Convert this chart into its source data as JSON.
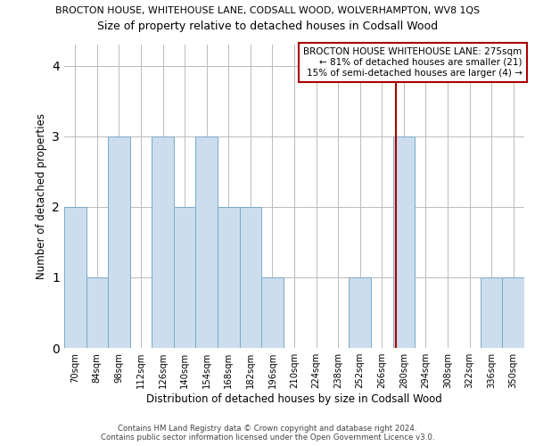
{
  "title_top": "BROCTON HOUSE, WHITEHOUSE LANE, CODSALL WOOD, WOLVERHAMPTON, WV8 1QS",
  "title_sub": "Size of property relative to detached houses in Codsall Wood",
  "xlabel": "Distribution of detached houses by size in Codsall Wood",
  "ylabel": "Number of detached properties",
  "categories": [
    "70sqm",
    "84sqm",
    "98sqm",
    "112sqm",
    "126sqm",
    "140sqm",
    "154sqm",
    "168sqm",
    "182sqm",
    "196sqm",
    "210sqm",
    "224sqm",
    "238sqm",
    "252sqm",
    "266sqm",
    "280sqm",
    "294sqm",
    "308sqm",
    "322sqm",
    "336sqm",
    "350sqm"
  ],
  "values": [
    2,
    1,
    3,
    0,
    3,
    2,
    3,
    2,
    2,
    1,
    0,
    0,
    0,
    1,
    0,
    3,
    0,
    0,
    0,
    1,
    1
  ],
  "bar_color": "#ccdded",
  "bar_edge_color": "#7aaac8",
  "ref_line_color": "#aa0000",
  "ylim": [
    0,
    4.3
  ],
  "yticks": [
    0,
    1,
    2,
    3,
    4
  ],
  "annotation_title": "BROCTON HOUSE WHITEHOUSE LANE: 275sqm",
  "annotation_line1": "← 81% of detached houses are smaller (21)",
  "annotation_line2": "15% of semi-detached houses are larger (4) →",
  "annotation_box_color": "#ffffff",
  "annotation_border_color": "#aa0000",
  "footer_line1": "Contains HM Land Registry data © Crown copyright and database right 2024.",
  "footer_line2": "Contains public sector information licensed under the Open Government Licence v3.0.",
  "background_color": "#ffffff",
  "grid_color": "#bbbbbb"
}
